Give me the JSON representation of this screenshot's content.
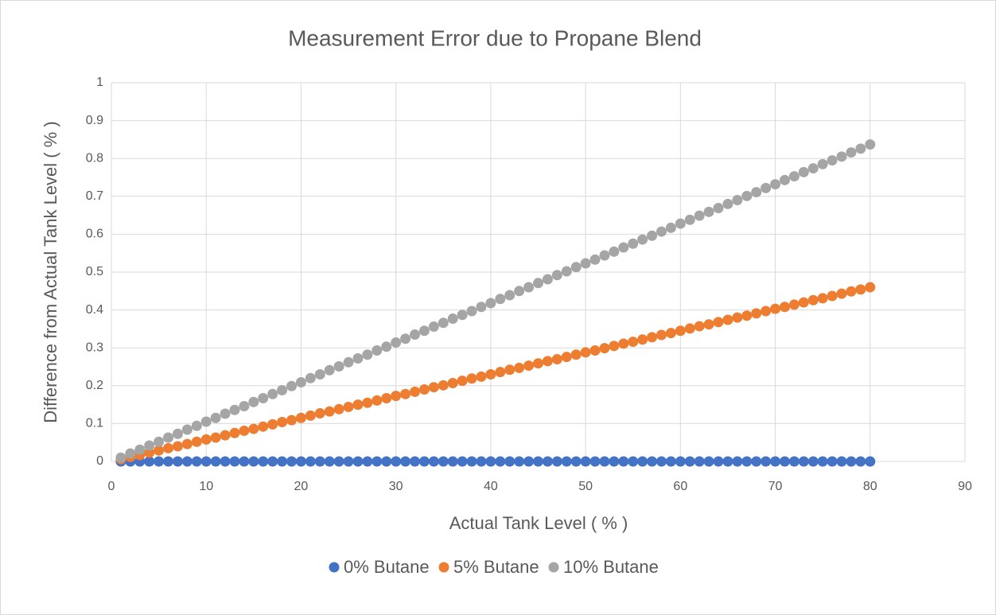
{
  "chart_data": {
    "type": "scatter",
    "title": "Measurement Error due to Propane Blend",
    "x_label": "Actual Tank Level ( % )",
    "y_label": "Difference from Actual Tank Level ( % )",
    "x": [
      1,
      2,
      3,
      4,
      5,
      6,
      7,
      8,
      9,
      10,
      11,
      12,
      13,
      14,
      15,
      16,
      17,
      18,
      19,
      20,
      21,
      22,
      23,
      24,
      25,
      26,
      27,
      28,
      29,
      30,
      31,
      32,
      33,
      34,
      35,
      36,
      37,
      38,
      39,
      40,
      41,
      42,
      43,
      44,
      45,
      46,
      47,
      48,
      49,
      50,
      51,
      52,
      53,
      54,
      55,
      56,
      57,
      58,
      59,
      60,
      61,
      62,
      63,
      64,
      65,
      66,
      67,
      68,
      69,
      70,
      71,
      72,
      73,
      74,
      75,
      76,
      77,
      78,
      79,
      80
    ],
    "series": [
      {
        "name": "0% Butane",
        "color": "#4472c4",
        "values": [
          0,
          0,
          0,
          0,
          0,
          0,
          0,
          0,
          0,
          0,
          0,
          0,
          0,
          0,
          0,
          0,
          0,
          0,
          0,
          0,
          0,
          0,
          0,
          0,
          0,
          0,
          0,
          0,
          0,
          0,
          0,
          0,
          0,
          0,
          0,
          0,
          0,
          0,
          0,
          0,
          0,
          0,
          0,
          0,
          0,
          0,
          0,
          0,
          0,
          0,
          0,
          0,
          0,
          0,
          0,
          0,
          0,
          0,
          0,
          0,
          0,
          0,
          0,
          0,
          0,
          0,
          0,
          0,
          0,
          0,
          0,
          0,
          0,
          0,
          0,
          0,
          0,
          0,
          0,
          0
        ]
      },
      {
        "name": "5% Butane",
        "color": "#ed7d31",
        "values": [
          0.006,
          0.012,
          0.017,
          0.023,
          0.029,
          0.035,
          0.04,
          0.046,
          0.052,
          0.058,
          0.063,
          0.069,
          0.075,
          0.081,
          0.086,
          0.092,
          0.098,
          0.104,
          0.109,
          0.115,
          0.121,
          0.127,
          0.132,
          0.138,
          0.144,
          0.15,
          0.155,
          0.161,
          0.167,
          0.173,
          0.178,
          0.184,
          0.19,
          0.196,
          0.201,
          0.207,
          0.213,
          0.219,
          0.224,
          0.23,
          0.236,
          0.242,
          0.247,
          0.253,
          0.259,
          0.265,
          0.27,
          0.276,
          0.282,
          0.288,
          0.293,
          0.299,
          0.305,
          0.311,
          0.316,
          0.322,
          0.328,
          0.334,
          0.339,
          0.345,
          0.351,
          0.357,
          0.362,
          0.368,
          0.374,
          0.38,
          0.385,
          0.391,
          0.397,
          0.403,
          0.408,
          0.414,
          0.42,
          0.426,
          0.431,
          0.437,
          0.443,
          0.449,
          0.454,
          0.46
        ]
      },
      {
        "name": "10% Butane",
        "color": "#a5a5a5",
        "values": [
          0.01,
          0.021,
          0.031,
          0.042,
          0.052,
          0.063,
          0.073,
          0.084,
          0.094,
          0.105,
          0.115,
          0.126,
          0.136,
          0.146,
          0.157,
          0.167,
          0.178,
          0.188,
          0.199,
          0.209,
          0.22,
          0.23,
          0.241,
          0.251,
          0.262,
          0.272,
          0.282,
          0.293,
          0.303,
          0.314,
          0.324,
          0.335,
          0.345,
          0.356,
          0.366,
          0.377,
          0.387,
          0.397,
          0.408,
          0.418,
          0.429,
          0.439,
          0.45,
          0.46,
          0.471,
          0.481,
          0.492,
          0.502,
          0.513,
          0.523,
          0.533,
          0.544,
          0.554,
          0.565,
          0.575,
          0.586,
          0.596,
          0.607,
          0.617,
          0.628,
          0.638,
          0.649,
          0.659,
          0.669,
          0.68,
          0.69,
          0.701,
          0.711,
          0.722,
          0.732,
          0.743,
          0.753,
          0.764,
          0.774,
          0.785,
          0.795,
          0.805,
          0.816,
          0.826,
          0.837
        ]
      }
    ],
    "xlim": [
      0,
      90
    ],
    "xticks": [
      0,
      10,
      20,
      30,
      40,
      50,
      60,
      70,
      80,
      90
    ],
    "ylim": [
      0,
      1
    ],
    "yticks": [
      0,
      0.1,
      0.2,
      0.3,
      0.4,
      0.5,
      0.6,
      0.7,
      0.8,
      0.9,
      1
    ],
    "grid": true,
    "legend": "bottom"
  }
}
